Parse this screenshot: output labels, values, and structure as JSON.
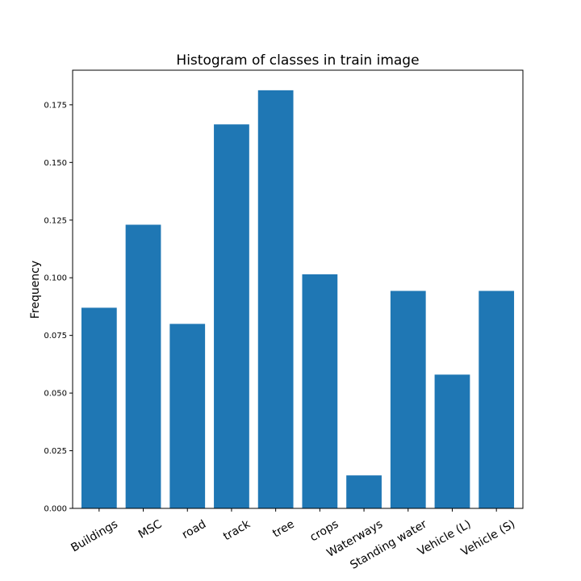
{
  "chart_data": {
    "type": "bar",
    "title": "Histogram of classes in train image",
    "xlabel": "",
    "ylabel": "Frequency",
    "categories": [
      "Buildings",
      "MSC",
      "road",
      "track",
      "tree",
      "crops",
      "Waterways",
      "Standing water",
      "Vehicle (L)",
      "Vehicle (S)"
    ],
    "values": [
      0.087,
      0.123,
      0.08,
      0.1665,
      0.1813,
      0.1015,
      0.0143,
      0.0943,
      0.058,
      0.0943
    ],
    "ylim": [
      0,
      0.19
    ],
    "yticks": [
      "0.000",
      "0.025",
      "0.050",
      "0.075",
      "0.100",
      "0.125",
      "0.150",
      "0.175"
    ],
    "bar_color": "#1f77b4",
    "grid": false
  }
}
